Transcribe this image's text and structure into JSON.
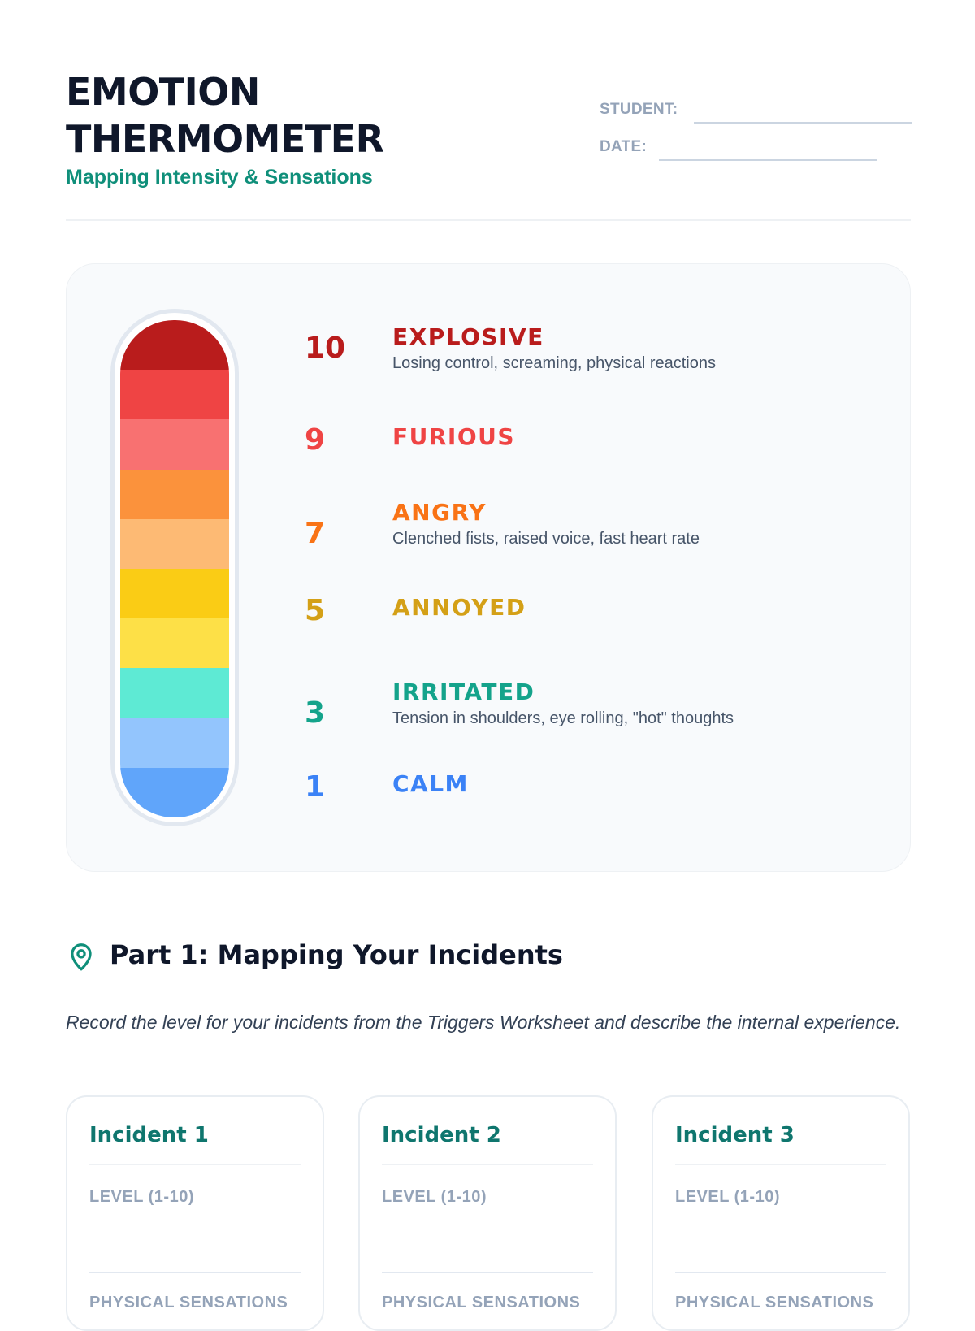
{
  "header": {
    "title_line1": "EMOTION",
    "title_line2": "THERMOMETER",
    "subtitle": "Mapping Intensity & Sensations",
    "student_label": "STUDENT:",
    "date_label": "DATE:"
  },
  "thermometer": {
    "segment_colors": [
      "#b91c1c",
      "#ef4444",
      "#f87171",
      "#fb923c",
      "#fdba74",
      "#facc15",
      "#fde047",
      "#5eead4",
      "#93c5fd",
      "#60a5fa"
    ],
    "levels": [
      {
        "number": "10",
        "name": "EXPLOSIVE",
        "description": "Losing control, screaming, physical reactions",
        "color": "#b91c1c"
      },
      {
        "number": "9",
        "name": "FURIOUS",
        "description": "",
        "color": "#ef4444"
      },
      {
        "number": "7",
        "name": "ANGRY",
        "description": "Clenched fists, raised voice, fast heart rate",
        "color": "#f97316"
      },
      {
        "number": "5",
        "name": "ANNOYED",
        "description": "",
        "color": "#d4a017"
      },
      {
        "number": "3",
        "name": "IRRITATED",
        "description": "Tension in shoulders, eye rolling, \"hot\" thoughts",
        "color": "#14a38b"
      },
      {
        "number": "1",
        "name": "CALM",
        "description": "",
        "color": "#3b82f6"
      }
    ]
  },
  "part1": {
    "icon": "map-pin-icon",
    "title": "Part 1: Mapping Your Incidents",
    "instructions": "Record the level for your incidents from the Triggers Worksheet and describe the internal experience."
  },
  "incidents": [
    {
      "title": "Incident 1",
      "level_label": "LEVEL (1-10)",
      "sensations_label": "PHYSICAL SENSATIONS"
    },
    {
      "title": "Incident 2",
      "level_label": "LEVEL (1-10)",
      "sensations_label": "PHYSICAL SENSATIONS"
    },
    {
      "title": "Incident 3",
      "level_label": "LEVEL (1-10)",
      "sensations_label": "PHYSICAL SENSATIONS"
    }
  ],
  "colors": {
    "accent": "#0f8f7a",
    "title": "#0f172a",
    "muted": "#94a3b8"
  }
}
